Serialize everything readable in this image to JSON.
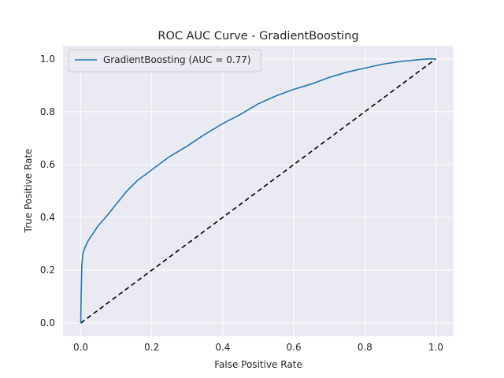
{
  "chart_data": {
    "type": "line",
    "title": "ROC AUC Curve - GradientBoosting",
    "xlabel": "False Positive Rate",
    "ylabel": "True Positive Rate",
    "xlim": [
      -0.05,
      1.05
    ],
    "ylim": [
      -0.05,
      1.05
    ],
    "xticks": [
      0.0,
      0.2,
      0.4,
      0.6,
      0.8,
      1.0
    ],
    "yticks": [
      0.0,
      0.2,
      0.4,
      0.6,
      0.8,
      1.0
    ],
    "xtick_labels": [
      "0.0",
      "0.2",
      "0.4",
      "0.6",
      "0.8",
      "1.0"
    ],
    "ytick_labels": [
      "0.0",
      "0.2",
      "0.4",
      "0.6",
      "0.8",
      "1.0"
    ],
    "grid": true,
    "legend_position": "top-left",
    "background_color": "#eaeaf2",
    "series": [
      {
        "name": "GradientBoosting (AUC = 0.77)",
        "color": "#1f77b4",
        "style": "solid",
        "x": [
          0.0,
          0.001,
          0.003,
          0.006,
          0.01,
          0.02,
          0.03,
          0.05,
          0.07,
          0.1,
          0.13,
          0.16,
          0.2,
          0.25,
          0.3,
          0.35,
          0.4,
          0.45,
          0.5,
          0.55,
          0.6,
          0.65,
          0.7,
          0.75,
          0.8,
          0.85,
          0.9,
          0.95,
          0.98,
          1.0
        ],
        "y": [
          0.0,
          0.1,
          0.22,
          0.26,
          0.28,
          0.31,
          0.33,
          0.37,
          0.4,
          0.45,
          0.5,
          0.54,
          0.58,
          0.63,
          0.67,
          0.715,
          0.755,
          0.79,
          0.83,
          0.86,
          0.885,
          0.905,
          0.93,
          0.95,
          0.965,
          0.98,
          0.99,
          0.997,
          1.0,
          1.0
        ]
      },
      {
        "name": "",
        "color": "#000000",
        "style": "dashed",
        "x": [
          0.0,
          1.0
        ],
        "y": [
          0.0,
          1.0
        ]
      }
    ]
  }
}
